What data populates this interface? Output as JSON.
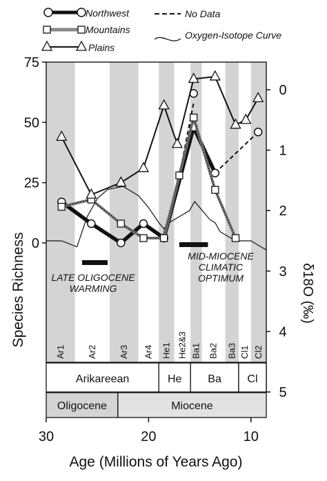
{
  "chart_data": {
    "type": "line",
    "xlabel": "Age (Millions of Years Ago)",
    "ylabel": "Species Richness",
    "y2label": "δ18O (‰)",
    "x_reversed": true,
    "xlim": [
      30,
      8.5
    ],
    "ylim": [
      -7,
      75
    ],
    "y2lim": [
      -0.3,
      5.0
    ],
    "x_ticks": [
      30,
      20,
      10
    ],
    "y_ticks": [
      0,
      25,
      50,
      75
    ],
    "y2_ticks": [
      0,
      1,
      2,
      3,
      4,
      5
    ],
    "legend": {
      "placement": "top",
      "entries": {
        "northwest": "Northwest",
        "mountains": "Mountains",
        "plains": "Plains",
        "no_data": "No Data",
        "oxygen": "Oxygen-Isotope Curve"
      }
    },
    "series": [
      {
        "name": "Northwest",
        "key": "northwest",
        "x": [
          28.5,
          25.6,
          22.7,
          20.5,
          18.5,
          15.6,
          13.5
        ],
        "y": [
          17,
          8,
          0,
          8,
          2,
          48,
          29
        ],
        "dashed_segments": [
          {
            "x": [
              13.5,
              9.3
            ],
            "y": [
              29,
              46
            ]
          }
        ],
        "gap_marker": {
          "x": 15.6,
          "y": 62
        }
      },
      {
        "name": "Mountains",
        "key": "mountains",
        "x": [
          28.5,
          25.6,
          22.7,
          20.5,
          18.5,
          17.0,
          15.6,
          13.5,
          11.5
        ],
        "y": [
          15,
          18,
          8,
          2,
          2,
          28,
          52,
          22,
          2
        ],
        "dashed_segments": [
          {
            "x": [
              17.0,
              15.6
            ],
            "y": [
              28,
              58
            ]
          }
        ]
      },
      {
        "name": "Plains",
        "key": "plains",
        "x": [
          28.5,
          25.6,
          22.7,
          20.5,
          18.5,
          17.2,
          15.6,
          13.5,
          11.5,
          10.5,
          9.3
        ],
        "y": [
          44,
          20,
          25,
          31,
          57,
          41,
          68,
          69,
          49,
          51,
          60
        ]
      },
      {
        "name": "Oxygen-Isotope Curve",
        "key": "oxygen",
        "axis": "right",
        "x": [
          30,
          28.5,
          27.0,
          26.0,
          25.0,
          24.0,
          22.5,
          21.0,
          20.0,
          19.0,
          18.5,
          18.0,
          17.0,
          16.5,
          16.0,
          15.5,
          15.0,
          14.5,
          14.0,
          13.5,
          13.0,
          12.5,
          12.0,
          11.5,
          11.0,
          10.5,
          10.0,
          9.5,
          9.0,
          8.5
        ],
        "y": [
          2.5,
          2.5,
          2.6,
          2.1,
          1.8,
          1.65,
          1.6,
          1.75,
          1.95,
          2.2,
          2.3,
          2.2,
          2.1,
          2.05,
          2.0,
          1.85,
          1.95,
          2.05,
          2.15,
          2.2,
          2.35,
          2.4,
          2.45,
          2.5,
          2.5,
          2.5,
          2.5,
          2.55,
          2.6,
          2.65
        ]
      }
    ],
    "event_bars": [
      {
        "label": "LATE OLIGOCENE WARMING",
        "x_start": 26.5,
        "x_end": 24.0,
        "y": -8
      },
      {
        "label": "MID-MIOCENE CLIMATIC OPTIMUM",
        "x_start": 17.0,
        "x_end": 14.2,
        "y": -1
      }
    ],
    "nalma_intervals": [
      {
        "label": "Ar1",
        "start": 30.0,
        "end": 27.2
      },
      {
        "label": "Ar2",
        "start": 27.2,
        "end": 23.8
      },
      {
        "label": "Ar3",
        "start": 23.8,
        "end": 21.0
      },
      {
        "label": "Ar4",
        "start": 21.0,
        "end": 19.0
      },
      {
        "label": "He1",
        "start": 19.0,
        "end": 17.5
      },
      {
        "label": "He2&3",
        "start": 17.5,
        "end": 15.9
      },
      {
        "label": "Ba1",
        "start": 15.9,
        "end": 14.8
      },
      {
        "label": "Ba2",
        "start": 14.8,
        "end": 12.5
      },
      {
        "label": "Ba3",
        "start": 12.5,
        "end": 11.2
      },
      {
        "label": "Cl1",
        "start": 11.2,
        "end": 10.0
      },
      {
        "label": "Cl2",
        "start": 10.0,
        "end": 8.5
      }
    ],
    "land_mammal_ages": [
      {
        "label": "Arikareean",
        "start": 30.0,
        "end": 19.0
      },
      {
        "label": "He",
        "start": 19.0,
        "end": 15.9
      },
      {
        "label": "Ba",
        "start": 15.9,
        "end": 11.2
      },
      {
        "label": "Cl",
        "start": 11.2,
        "end": 8.5
      }
    ],
    "epochs": [
      {
        "label": "Oligocene",
        "start": 30.0,
        "end": 23.0
      },
      {
        "label": "Miocene",
        "start": 23.0,
        "end": 8.5
      }
    ]
  }
}
